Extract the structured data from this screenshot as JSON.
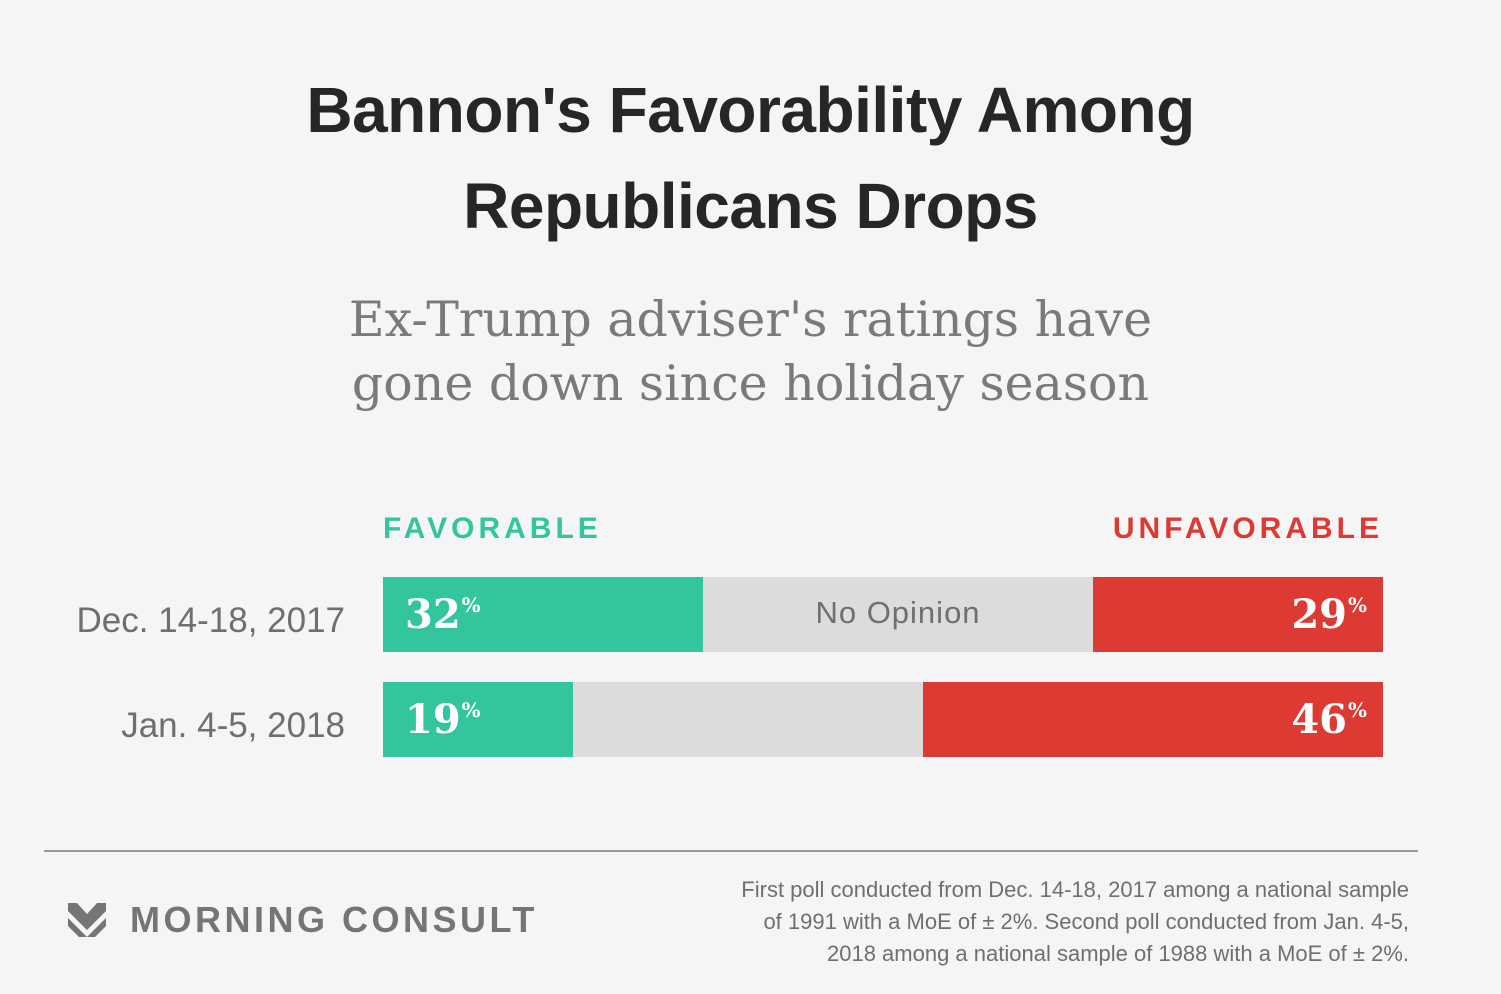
{
  "title_lines": [
    "Bannon's Favorability Among",
    "Republicans Drops"
  ],
  "subtitle_lines": [
    "Ex-Trump adviser's ratings have",
    "gone down since holiday season"
  ],
  "legend": {
    "favorable": "FAVORABLE",
    "unfavorable": "UNFAVORABLE"
  },
  "colors": {
    "favorable": "#33c69e",
    "no_opinion": "#dcdcdc",
    "unfavorable": "#dc3a33"
  },
  "chart_data": {
    "type": "bar",
    "stacked": true,
    "orientation": "horizontal",
    "categories": [
      "Dec. 14-18, 2017",
      "Jan. 4-5, 2018"
    ],
    "series": [
      {
        "name": "FAVORABLE",
        "values": [
          32,
          19
        ]
      },
      {
        "name": "No Opinion",
        "values": [
          39,
          35
        ]
      },
      {
        "name": "UNFAVORABLE",
        "values": [
          29,
          46
        ]
      }
    ],
    "value_labels": {
      "favorable": [
        "32",
        "19"
      ],
      "unfavorable": [
        "29",
        "46"
      ],
      "suffix": "%"
    },
    "no_opinion_label": "No Opinion",
    "xlim": [
      0,
      100
    ]
  },
  "footer": {
    "brand": "MORNING CONSULT",
    "brand_icon": "morning-consult-chevron-icon",
    "source_lines": [
      "First poll conducted from Dec. 14-18, 2017 among a national sample",
      "of 1991 with a MoE of ± 2%. Second poll conducted from Jan. 4-5,",
      "2018 among a national sample of 1988 with a MoE of ± 2%."
    ]
  }
}
